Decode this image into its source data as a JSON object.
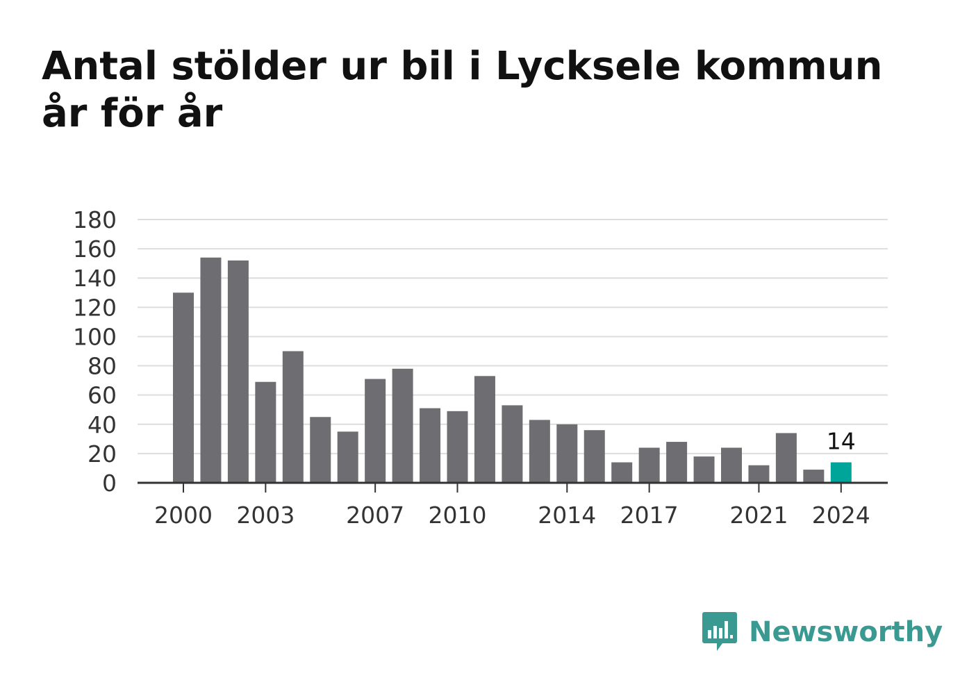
{
  "title": "Antal stölder ur bil i Lycksele kommun år för år",
  "brand": {
    "name": "Newsworthy",
    "icon": "bar-chart-speech-bubble-icon",
    "color": "#3a9a91"
  },
  "colors": {
    "bar": "#6e6d72",
    "highlight": "#00a59a",
    "grid": "#dddddd",
    "axis": "#333333"
  },
  "chart_data": {
    "type": "bar",
    "title": "Antal stölder ur bil i Lycksele kommun år för år",
    "xlabel": "",
    "ylabel": "",
    "categories": [
      "2000",
      "2001",
      "2002",
      "2003",
      "2004",
      "2005",
      "2006",
      "2007",
      "2008",
      "2009",
      "2010",
      "2011",
      "2012",
      "2013",
      "2014",
      "2015",
      "2016",
      "2017",
      "2018",
      "2019",
      "2020",
      "2021",
      "2022",
      "2023",
      "2024"
    ],
    "values": [
      130,
      154,
      152,
      69,
      90,
      45,
      35,
      71,
      78,
      51,
      49,
      73,
      53,
      43,
      40,
      36,
      14,
      24,
      28,
      18,
      24,
      12,
      34,
      9,
      14
    ],
    "ylim": [
      0,
      180
    ],
    "yticks": [
      "0",
      "20",
      "40",
      "60",
      "80",
      "100",
      "120",
      "140",
      "160",
      "180"
    ],
    "xticks": [
      "2000",
      "2003",
      "2007",
      "2010",
      "2014",
      "2017",
      "2021",
      "2024"
    ],
    "highlight": {
      "category": "2024",
      "label": "14"
    },
    "grid": true,
    "legend": "none"
  }
}
